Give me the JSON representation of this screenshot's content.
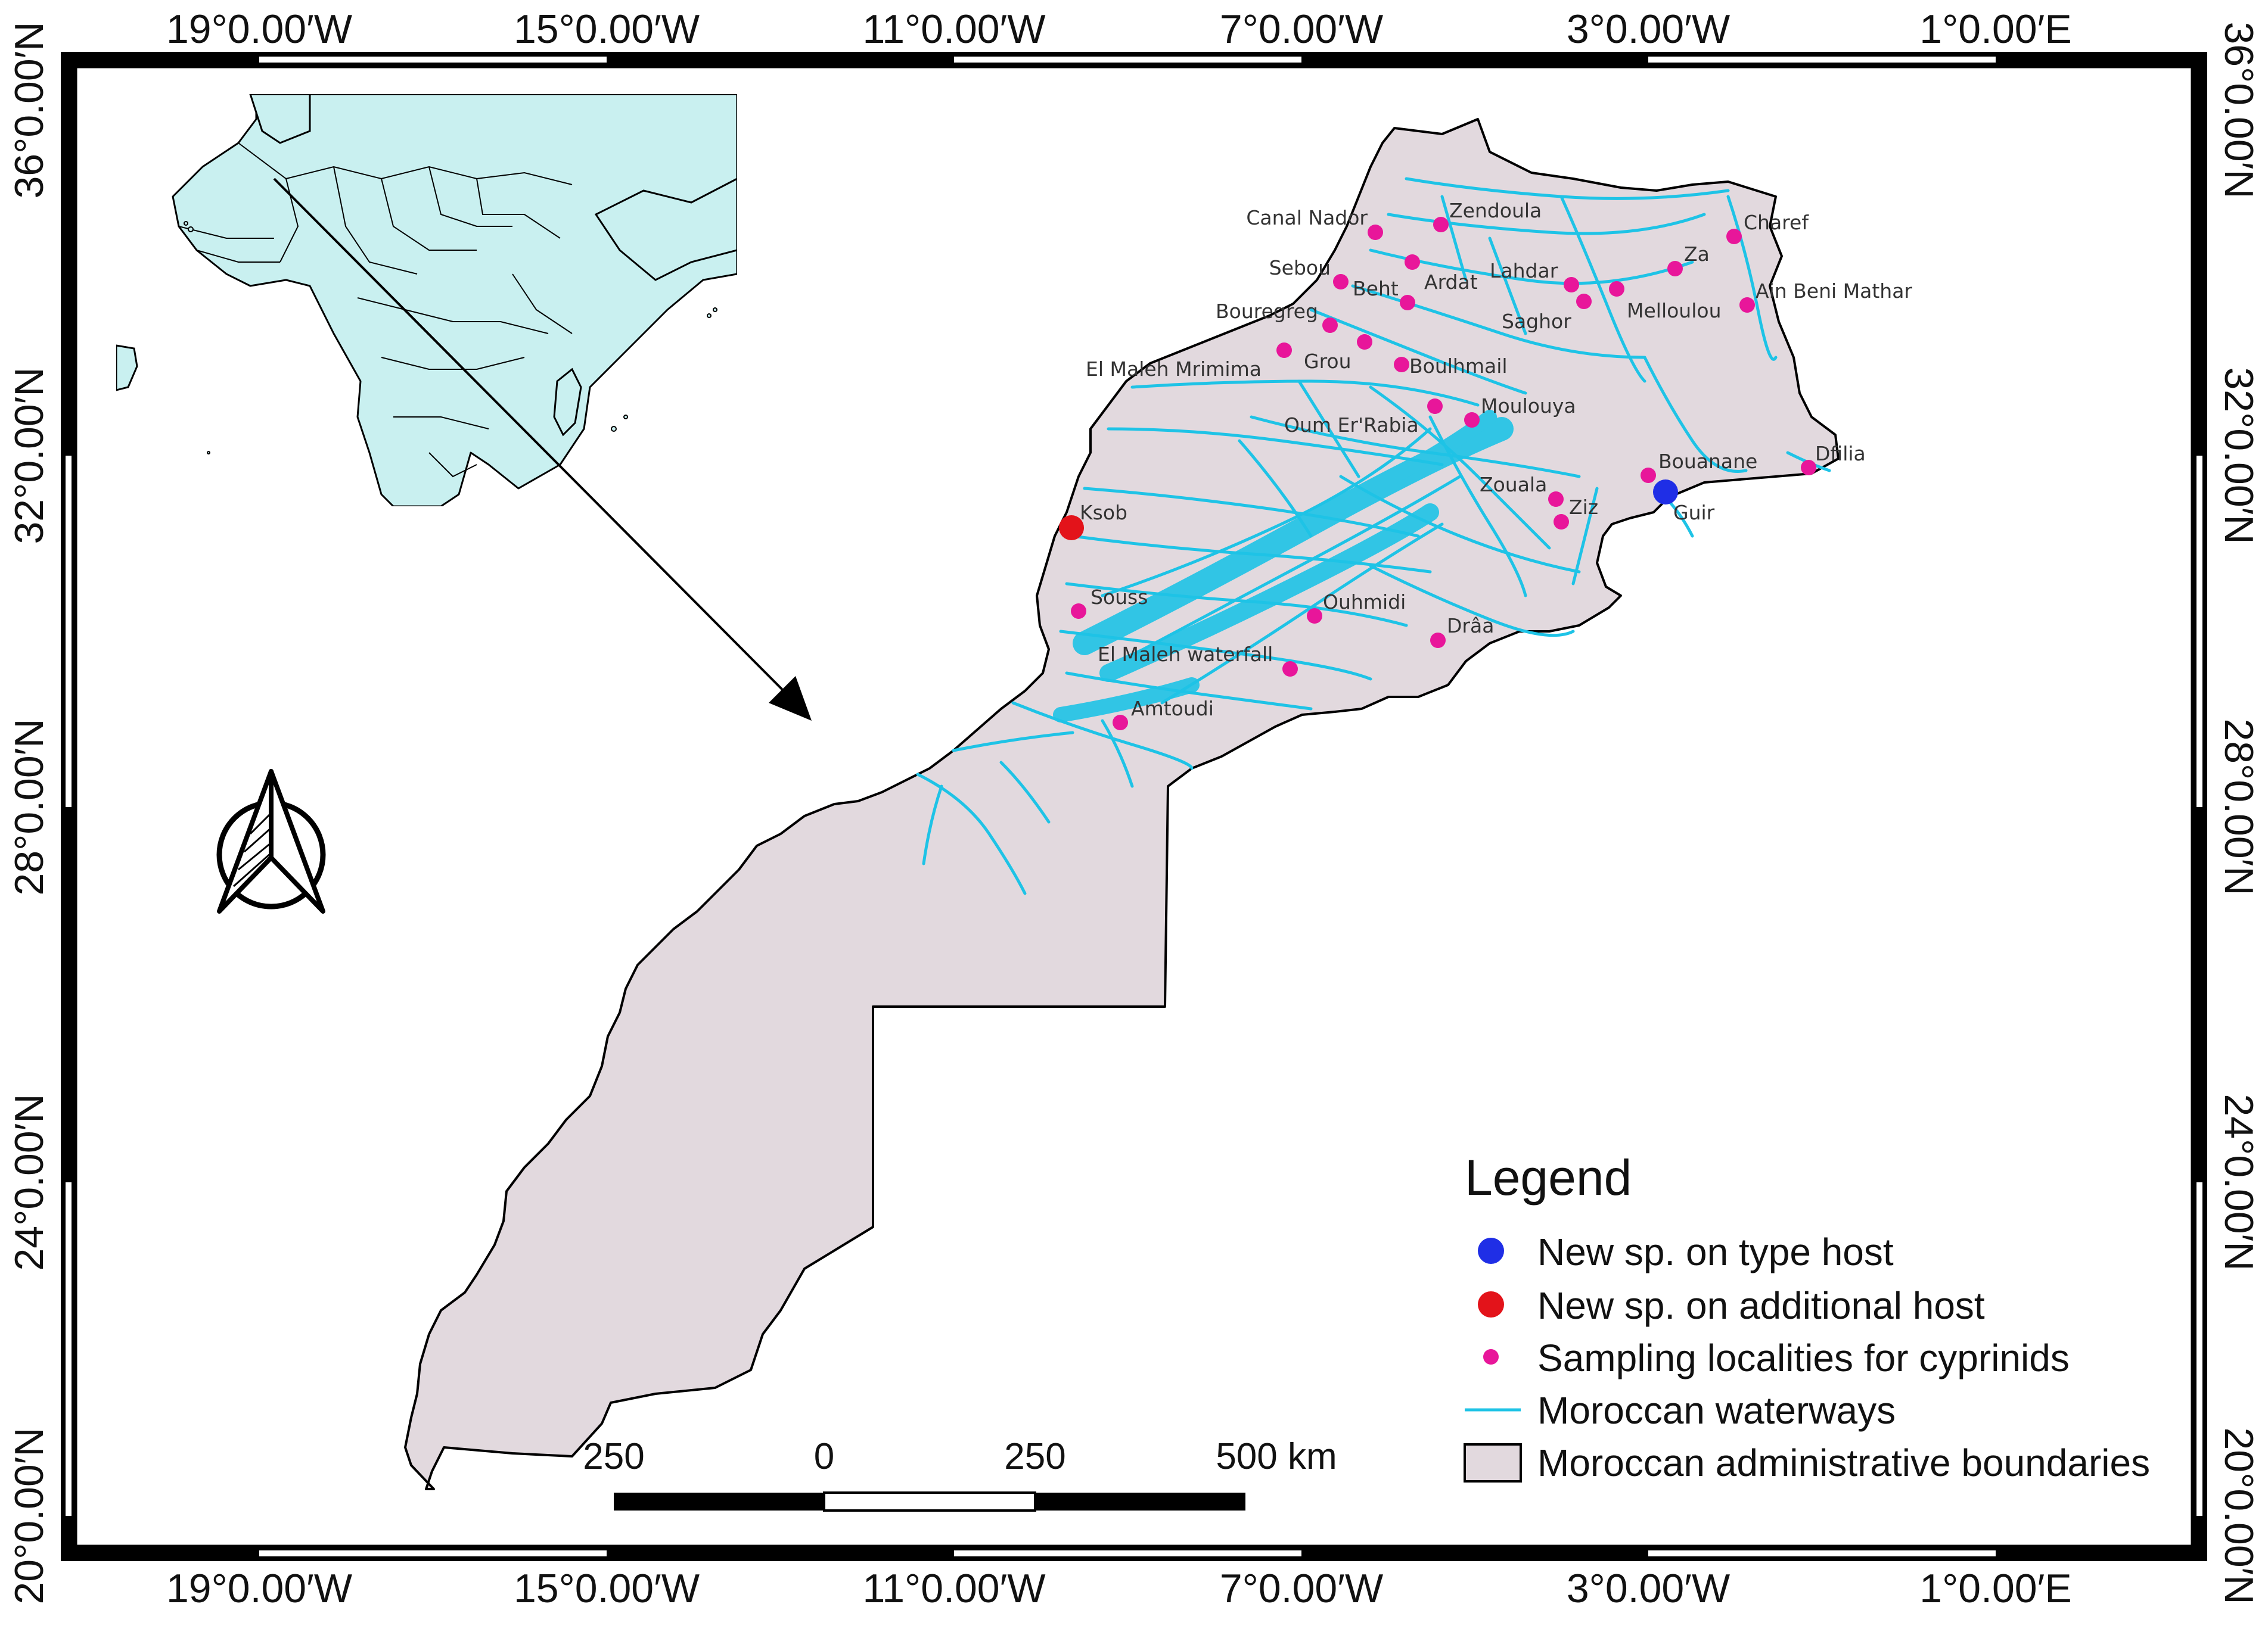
{
  "map": {
    "lon_labels": [
      "19°0.00′W",
      "15°0.00′W",
      "11°0.00′W",
      "7°0.00′W",
      "3°0.00′W",
      "1°0.00′E"
    ],
    "lat_labels": [
      "36°0.00′N",
      "32°0.00′N",
      "28°0.00′N",
      "24°0.00′N",
      "20°0.00′N"
    ]
  },
  "legend": {
    "title": "Legend",
    "items": [
      {
        "label": "New sp. on type host",
        "symbol": "large-dot",
        "color": "#1f2ee6"
      },
      {
        "label": "New sp. on additional host",
        "symbol": "large-dot",
        "color": "#e3131a"
      },
      {
        "label": "Sampling localities for cyprinids",
        "symbol": "small-dot",
        "color": "#e8169a"
      },
      {
        "label": "Moroccan waterways",
        "symbol": "line",
        "color": "#1ec3e6"
      },
      {
        "label": "Moroccan administrative boundaries",
        "symbol": "polygon",
        "color": "#e2d9de"
      }
    ]
  },
  "scale_bar": {
    "labels": [
      "250",
      "0",
      "250",
      "500 km"
    ]
  },
  "sites": [
    {
      "name": "Zendoula",
      "type": "sampling"
    },
    {
      "name": "Canal Nador",
      "type": "sampling"
    },
    {
      "name": "Sebou",
      "type": "sampling"
    },
    {
      "name": "Beht",
      "type": "sampling"
    },
    {
      "name": "Ardat",
      "type": "sampling"
    },
    {
      "name": "Lahdar",
      "type": "sampling"
    },
    {
      "name": "Za",
      "type": "sampling"
    },
    {
      "name": "Charef",
      "type": "sampling"
    },
    {
      "name": "Ain Beni Mathar",
      "type": "sampling"
    },
    {
      "name": "Melloulou",
      "type": "sampling"
    },
    {
      "name": "Saghor",
      "type": "sampling"
    },
    {
      "name": "Bouregreg",
      "type": "sampling"
    },
    {
      "name": "Grou",
      "type": "sampling"
    },
    {
      "name": "El Maleh Mrimima",
      "type": "sampling"
    },
    {
      "name": "Boulhmail",
      "type": "sampling"
    },
    {
      "name": "Moulouya",
      "type": "sampling"
    },
    {
      "name": "Oum Er'Rabia",
      "type": "sampling"
    },
    {
      "name": "Bouanane",
      "type": "sampling"
    },
    {
      "name": "Dfilia",
      "type": "sampling"
    },
    {
      "name": "Zouala",
      "type": "sampling"
    },
    {
      "name": "Ziz",
      "type": "sampling"
    },
    {
      "name": "Guir",
      "type": "type-host"
    },
    {
      "name": "Ksob",
      "type": "additional-host"
    },
    {
      "name": "Souss",
      "type": "sampling"
    },
    {
      "name": "Ouhmidi",
      "type": "sampling"
    },
    {
      "name": "Drâa",
      "type": "sampling"
    },
    {
      "name": "El Maleh waterfall",
      "type": "sampling"
    },
    {
      "name": "Amtoudi",
      "type": "sampling"
    }
  ],
  "colors": {
    "land": "#e2d9de",
    "water": "#1ec3e6",
    "inset_land": "#c9f0f0",
    "type_host": "#1f2ee6",
    "additional_host": "#e3131a",
    "sampling": "#e8169a"
  }
}
